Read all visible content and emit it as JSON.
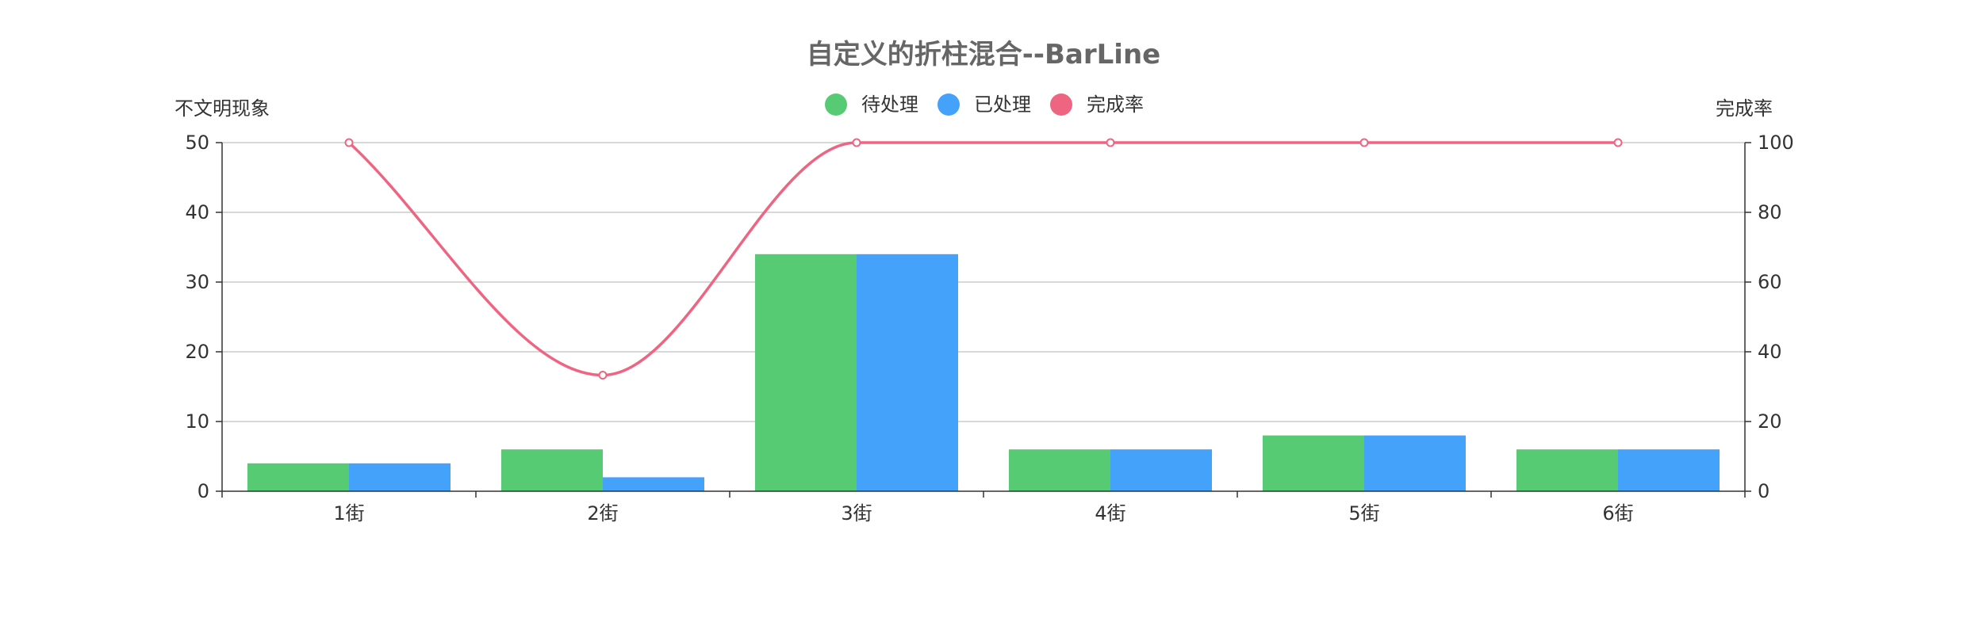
{
  "chart_data": {
    "type": "bar",
    "title": "自定义的折柱混合--BarLine",
    "categories": [
      "1街",
      "2街",
      "3街",
      "4街",
      "5街",
      "6街"
    ],
    "series": [
      {
        "name": "待处理",
        "type": "bar",
        "axis": "left",
        "color": "#56cb74",
        "values": [
          4,
          6,
          34,
          6,
          8,
          6
        ]
      },
      {
        "name": "已处理",
        "type": "bar",
        "axis": "left",
        "color": "#45a2fb",
        "values": [
          4,
          2,
          34,
          6,
          8,
          6
        ]
      },
      {
        "name": "完成率",
        "type": "line",
        "axis": "right",
        "smooth": true,
        "color": "#ee6582",
        "values": [
          100,
          33.3,
          100,
          100,
          100,
          100
        ]
      }
    ],
    "y_left": {
      "label": "不文明现象",
      "range": [
        0,
        50
      ],
      "ticks": [
        0,
        10,
        20,
        30,
        40,
        50
      ]
    },
    "y_right": {
      "label": "完成率",
      "range": [
        0,
        100
      ],
      "ticks": [
        0,
        20,
        40,
        60,
        80,
        100
      ]
    },
    "grid": true,
    "legend_position": "top-center"
  },
  "colors": {
    "grid": "#cccccc",
    "axis": "#333333",
    "title": "#666666"
  }
}
